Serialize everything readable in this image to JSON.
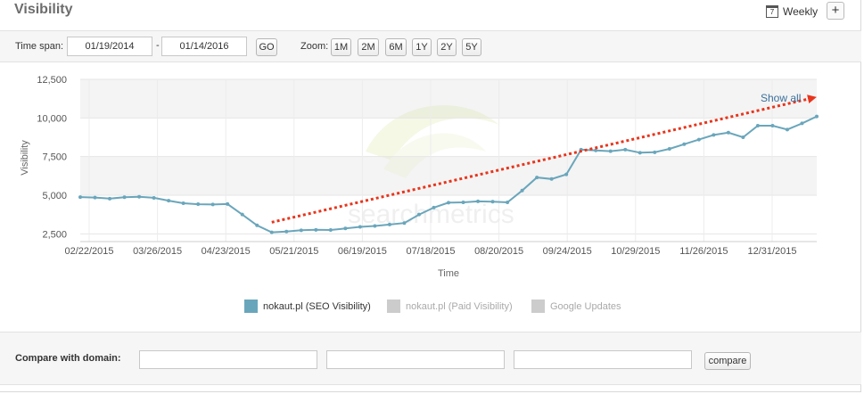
{
  "header": {
    "title": "Visibility",
    "interval_label": "Weekly",
    "calendar_icon_text": "7",
    "add_label": "+"
  },
  "toolbar": {
    "time_span_label": "Time span:",
    "start_date": "01/19/2014",
    "end_date": "01/14/2016",
    "separator": "-",
    "go_label": "GO",
    "zoom_label": "Zoom:",
    "zoom_options": [
      "1M",
      "2M",
      "6M",
      "1Y",
      "2Y",
      "5Y"
    ]
  },
  "chart_data": {
    "type": "line",
    "xlabel": "Time",
    "ylabel": "Visibility",
    "ylim": [
      2000,
      12500
    ],
    "yticks": [
      2500,
      5000,
      7500,
      10000,
      12500
    ],
    "ytick_labels": [
      "2,500",
      "5,000",
      "7,500",
      "10,000",
      "12,500"
    ],
    "xtick_labels": [
      "02/22/2015",
      "03/26/2015",
      "04/23/2015",
      "05/21/2015",
      "06/19/2015",
      "07/18/2015",
      "08/20/2015",
      "09/24/2015",
      "10/29/2015",
      "11/26/2015",
      "12/31/2015"
    ],
    "series": [
      {
        "name": "nokaut.pl (SEO Visibility)",
        "color": "#6aa6bb",
        "values": [
          4880,
          4850,
          4780,
          4870,
          4900,
          4830,
          4650,
          4480,
          4420,
          4400,
          4430,
          3750,
          3050,
          2600,
          2650,
          2730,
          2760,
          2750,
          2850,
          2950,
          3010,
          3100,
          3200,
          3750,
          4200,
          4520,
          4540,
          4600,
          4580,
          4540,
          5300,
          6150,
          6050,
          6350,
          7950,
          7900,
          7850,
          7950,
          7750,
          7780,
          8000,
          8300,
          8600,
          8900,
          9050,
          8750,
          9500,
          9500,
          9250,
          9650,
          10100
        ]
      },
      {
        "name": "nokaut.pl (Paid Visibility)",
        "color": "#cccccc",
        "values": []
      },
      {
        "name": "Google Updates",
        "color": "#cccccc",
        "values": []
      }
    ],
    "grid": true,
    "legend_position": "bottom",
    "annotation": {
      "type": "trend-arrow",
      "color": "#e8351c",
      "from_index": 13,
      "from_value": 3250,
      "to_index": 50,
      "to_value": 11300
    },
    "show_all_label": "Show all"
  },
  "compare": {
    "label": "Compare with domain:",
    "input_values": [
      "",
      "",
      ""
    ],
    "button_label": "compare"
  }
}
